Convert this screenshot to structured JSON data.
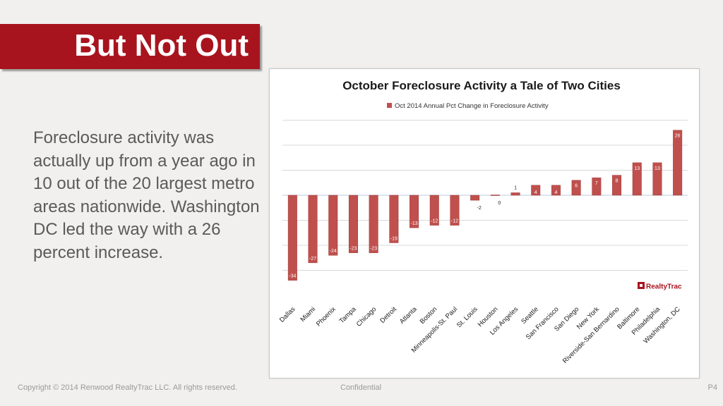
{
  "slide": {
    "title": "But Not Out",
    "body": "Foreclosure activity was actually up from a year ago in 10 out of the 20 largest metro areas nationwide. Washington DC led the way with a 26 percent increase.",
    "footer_left": "Copyright © 2014 Renwood RealtyTrac LLC. All rights reserved.",
    "footer_center": "Confidential",
    "footer_right": "P4"
  },
  "colors": {
    "title_band": "#a8141e",
    "bar": "#c0504d",
    "bar_edge": "#9c3b39",
    "grid": "#d9d9d9",
    "baseline": "#b8c9dc"
  },
  "chart_data": {
    "type": "bar",
    "title": "October Foreclosure Activity a Tale of Two Cities",
    "legend": {
      "label": "Oct 2014 Annual Pct Change in Foreclosure Activity",
      "position": "top"
    },
    "logo_text": "RealtyTrac",
    "categories": [
      "Dallas",
      "Miami",
      "Phoenix",
      "Tampa",
      "Chicago",
      "Detroit",
      "Atlanta",
      "Boston",
      "Minneapolis-St. Paul",
      "St. Louis",
      "Houston",
      "Los Angeles",
      "Seattle",
      "San Francisco",
      "San Diego",
      "New York",
      "Riverside-San Bernardino",
      "Baltimore",
      "Philadelphia",
      "Washington, DC"
    ],
    "series": [
      {
        "name": "Oct 2014 Annual Pct Change in Foreclosure Activity",
        "values": [
          -34,
          -27,
          -24,
          -23,
          -23,
          -19,
          -13,
          -12,
          -12,
          -2,
          0,
          1,
          4,
          4,
          6,
          7,
          8,
          13,
          13,
          26
        ]
      }
    ],
    "ylim": [
      -35,
      30
    ],
    "grid": true,
    "data_labels": true
  }
}
